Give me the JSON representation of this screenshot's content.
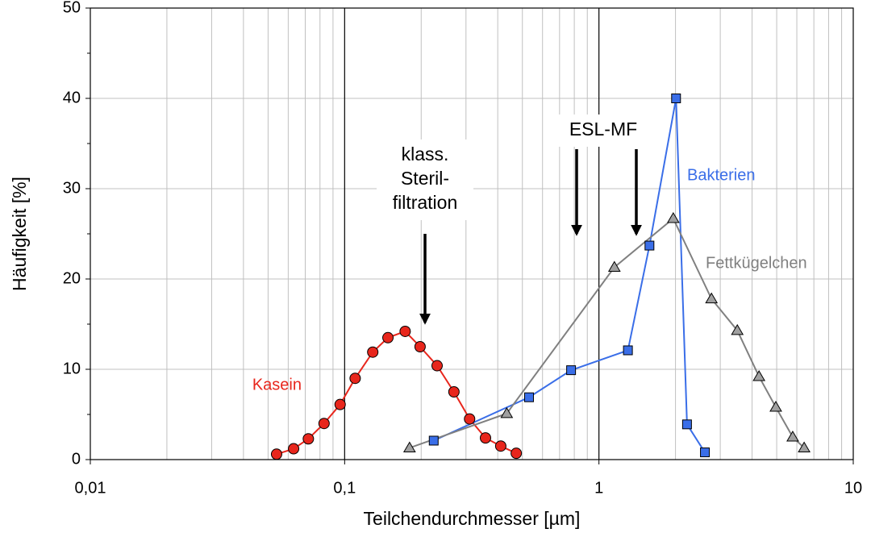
{
  "chart_data": {
    "type": "line",
    "x_label": "Teilchendurchmesser [µm]",
    "y_label": "Häufigkeit [%]",
    "xscale": "log",
    "xlim": [
      0.01,
      10
    ],
    "xticks": [
      {
        "value": 0.01,
        "label": "0,01"
      },
      {
        "value": 0.1,
        "label": "0,1"
      },
      1,
      10
    ],
    "ylim": [
      0,
      50
    ],
    "yticks": [
      0,
      10,
      20,
      30,
      40,
      50
    ],
    "grid": true,
    "series": [
      {
        "name": "Kasein",
        "color": "#e8261c",
        "marker": "circle",
        "x": [
          0.054,
          0.063,
          0.072,
          0.083,
          0.096,
          0.11,
          0.129,
          0.148,
          0.173,
          0.198,
          0.231,
          0.269,
          0.31,
          0.358,
          0.411,
          0.473
        ],
        "values": [
          0.6,
          1.2,
          2.3,
          4.0,
          6.1,
          9.0,
          11.9,
          13.5,
          14.2,
          12.5,
          10.4,
          7.5,
          4.5,
          2.4,
          1.5,
          0.7
        ]
      },
      {
        "name": "Bakterien",
        "color": "#3a6ee8",
        "marker": "square",
        "x": [
          0.224,
          0.531,
          0.777,
          1.3,
          1.58,
          2.01,
          2.22,
          2.61
        ],
        "values": [
          2.1,
          6.9,
          9.9,
          12.1,
          23.7,
          40,
          3.9,
          0.8
        ]
      },
      {
        "name": "Fettkügelchen",
        "color": "#808080",
        "marker": "triangle",
        "x": [
          0.18,
          0.434,
          1.15,
          1.96,
          2.77,
          3.5,
          4.26,
          4.96,
          5.78,
          6.41
        ],
        "values": [
          1.3,
          5.1,
          21.3,
          26.7,
          17.8,
          14.3,
          9.2,
          5.8,
          2.5,
          1.3
        ]
      }
    ],
    "annotations": [
      {
        "lines": [
          "klass.",
          "Steril-",
          "filtration"
        ]
      },
      {
        "lines": [
          "ESL-MF"
        ]
      }
    ]
  }
}
